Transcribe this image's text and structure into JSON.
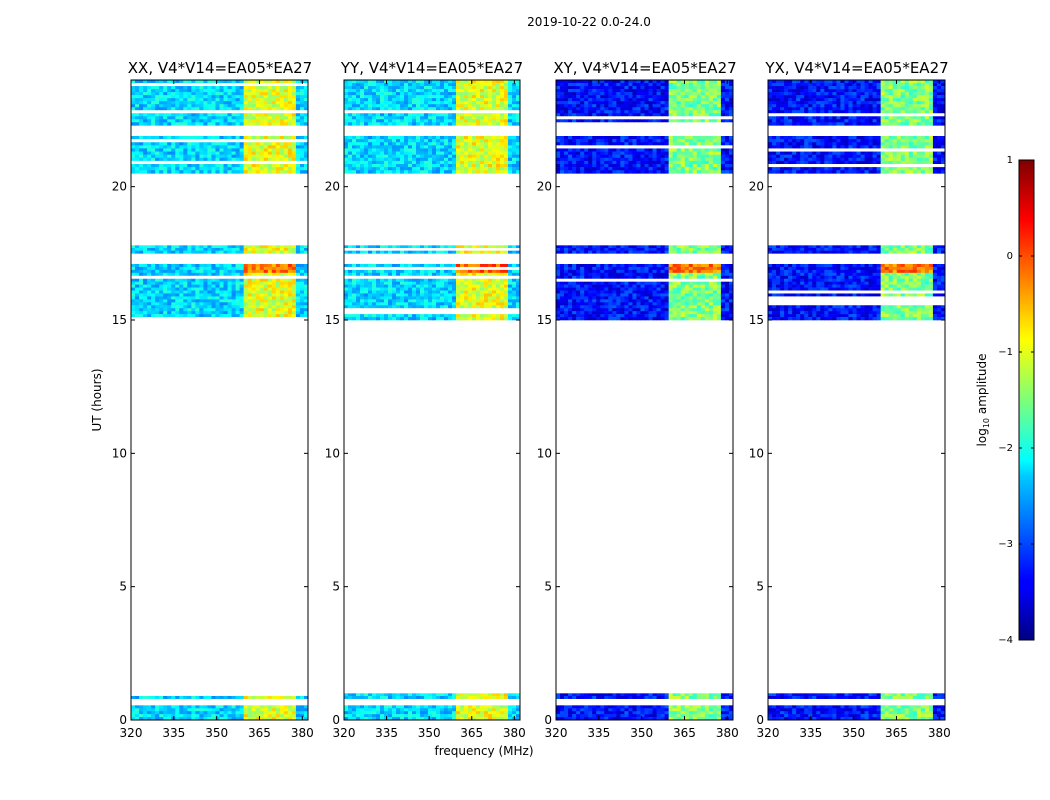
{
  "chart_data": {
    "type": "heatmap",
    "suptitle": "2019-10-22 0.0-24.0",
    "xlabel": "frequency (MHz)",
    "ylabel": "UT (hours)",
    "xlim": [
      320,
      382
    ],
    "ylim": [
      0,
      24
    ],
    "xticks": [
      "320",
      "335",
      "350",
      "365",
      "380"
    ],
    "xtick_values": [
      320,
      335,
      350,
      365,
      380
    ],
    "yticks": [
      "0",
      "5",
      "10",
      "15",
      "20"
    ],
    "ytick_values": [
      0,
      5,
      10,
      15,
      20
    ],
    "panels": [
      {
        "title": "XX, V4*V14=EA05*EA27",
        "base_level": -2.3,
        "rfi_level": -1.0,
        "rfi_peak": 0.2
      },
      {
        "title": "YY, V4*V14=EA05*EA27",
        "base_level": -2.3,
        "rfi_level": -1.0,
        "rfi_peak": 0.3
      },
      {
        "title": "XY, V4*V14=EA05*EA27",
        "base_level": -3.3,
        "rfi_level": -1.5,
        "rfi_peak": 0.2
      },
      {
        "title": "YX, V4*V14=EA05*EA27",
        "base_level": -3.3,
        "rfi_level": -1.5,
        "rfi_peak": 0.2
      }
    ],
    "data_time_ranges_hours": [
      [
        0.0,
        0.55
      ],
      [
        0.8,
        1.0
      ],
      [
        15.0,
        17.1
      ],
      [
        17.5,
        17.8
      ],
      [
        20.5,
        21.9
      ],
      [
        22.3,
        24.0
      ]
    ],
    "rfi_band_mhz": [
      360,
      378
    ],
    "colorbar": {
      "label": "log10 amplitude",
      "label_prefix": "log",
      "label_subscript": "10",
      "label_suffix": "amplitude",
      "min": -4,
      "max": 1,
      "ticks": [
        "1",
        "0",
        "−1",
        "−2",
        "−3",
        "−4"
      ],
      "tick_values": [
        1,
        0,
        -1,
        -2,
        -3,
        -4
      ],
      "colormap": "jet"
    }
  }
}
